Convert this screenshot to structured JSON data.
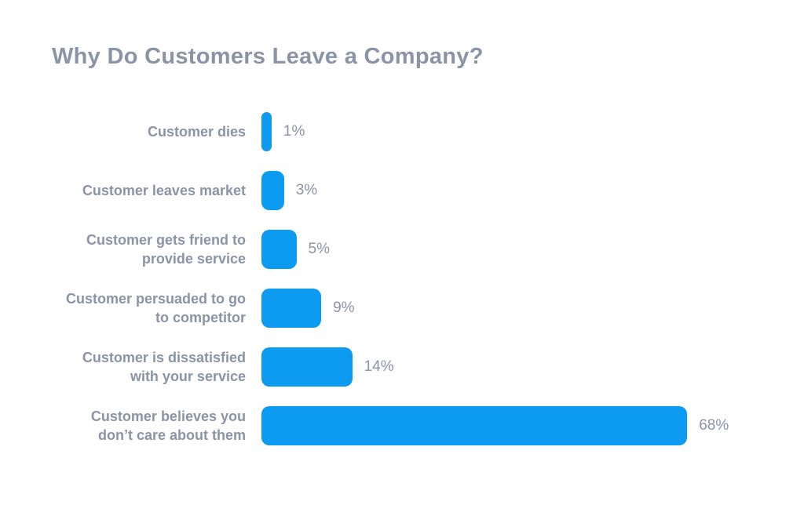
{
  "chart_data": {
    "type": "bar",
    "orientation": "horizontal",
    "title": "Why Do Customers Leave a Company?",
    "categories": [
      "Customer dies",
      "Customer leaves market",
      "Customer gets friend to\nprovide service",
      "Customer persuaded to go\nto competitor",
      "Customer is dissatisfied\nwith your service",
      "Customer believes you\ndon’t care about them"
    ],
    "values": [
      1,
      3,
      5,
      9,
      14,
      68
    ],
    "value_labels": [
      "1%",
      "3%",
      "5%",
      "9%",
      "14%",
      "68%"
    ],
    "xlabel": "",
    "ylabel": "",
    "xlim": [
      0,
      68
    ],
    "grid": false,
    "legend": false,
    "bar_color": "#0d9bf2",
    "label_color": "#8a94a6",
    "title_color": "#8a94a6",
    "background_color": "#ffffff"
  }
}
